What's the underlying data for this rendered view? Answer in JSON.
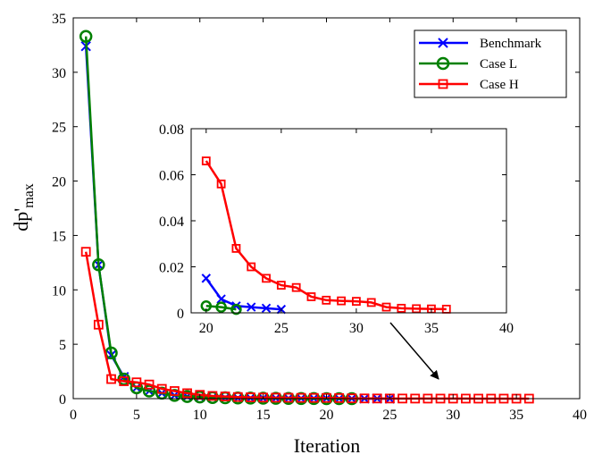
{
  "chart_data": {
    "type": "line",
    "xlabel": "Iteration",
    "ylabel_main": "dp'",
    "ylabel_sub": "max",
    "xlim": [
      0,
      40
    ],
    "ylim": [
      0,
      35
    ],
    "xticks": [
      "0",
      "5",
      "10",
      "15",
      "20",
      "25",
      "30",
      "35",
      "40"
    ],
    "yticks": [
      "0",
      "5",
      "10",
      "15",
      "20",
      "25",
      "30",
      "35"
    ],
    "legend_position": "top-right",
    "series": [
      {
        "name": "Benchmark",
        "color": "#0000ff",
        "marker": "x",
        "x": [
          1,
          2,
          3,
          4,
          5,
          6,
          7,
          8,
          9,
          10,
          11,
          12,
          13,
          14,
          15,
          16,
          17,
          18,
          19,
          20,
          21,
          22,
          23,
          24,
          25
        ],
        "y": [
          32.4,
          12.3,
          4.0,
          2.0,
          1.0,
          0.7,
          0.5,
          0.3,
          0.2,
          0.15,
          0.1,
          0.08,
          0.06,
          0.05,
          0.04,
          0.035,
          0.03,
          0.025,
          0.02,
          0.015,
          0.006,
          0.003,
          0.0025,
          0.002,
          0.0015
        ]
      },
      {
        "name": "Case L",
        "color": "#008000",
        "marker": "o",
        "x": [
          1,
          2,
          3,
          4,
          5,
          6,
          7,
          8,
          9,
          10,
          11,
          12,
          13,
          14,
          15,
          16,
          17,
          18,
          19,
          20,
          21,
          22
        ],
        "y": [
          33.3,
          12.3,
          4.2,
          1.8,
          1.0,
          0.7,
          0.5,
          0.3,
          0.2,
          0.15,
          0.1,
          0.08,
          0.06,
          0.05,
          0.04,
          0.03,
          0.02,
          0.015,
          0.01,
          0.003,
          0.0025,
          0.0015
        ]
      },
      {
        "name": "Case H",
        "color": "#ff0000",
        "marker": "s",
        "x": [
          1,
          2,
          3,
          4,
          5,
          6,
          7,
          8,
          9,
          10,
          11,
          12,
          13,
          14,
          15,
          16,
          17,
          18,
          19,
          20,
          21,
          22,
          23,
          24,
          25,
          26,
          27,
          28,
          29,
          30,
          31,
          32,
          33,
          34,
          35,
          36
        ],
        "y": [
          13.5,
          6.8,
          1.8,
          1.6,
          1.5,
          1.3,
          0.9,
          0.7,
          0.5,
          0.35,
          0.25,
          0.2,
          0.15,
          0.12,
          0.1,
          0.09,
          0.08,
          0.07,
          0.066,
          0.066,
          0.056,
          0.028,
          0.02,
          0.015,
          0.012,
          0.011,
          0.007,
          0.0055,
          0.0052,
          0.005,
          0.0045,
          0.0025,
          0.002,
          0.0018,
          0.0017,
          0.0016
        ]
      }
    ],
    "inset": {
      "xlim": [
        19,
        40
      ],
      "ylim": [
        0,
        0.08
      ],
      "xticks": [
        "20",
        "25",
        "30",
        "35",
        "40"
      ],
      "yticks": [
        "0",
        "0.02",
        "0.04",
        "0.06",
        "0.08"
      ],
      "x_from": 20
    }
  }
}
